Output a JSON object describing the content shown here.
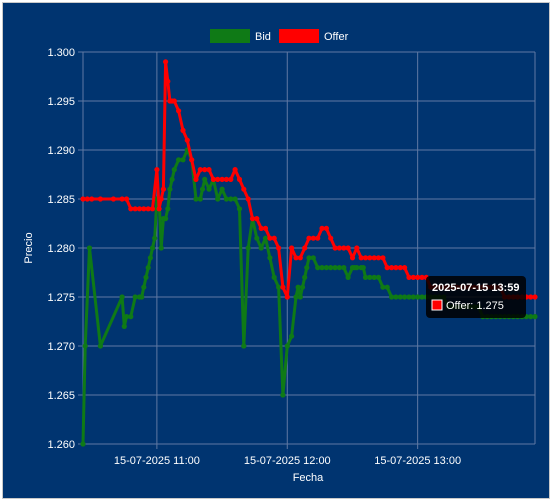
{
  "colors": {
    "background": "#003470",
    "grid": "#6079a3",
    "text": "#ffffff",
    "bid": "#0f7a16",
    "offer": "#ff0000",
    "tooltip_bg": "#000000"
  },
  "chart_data": {
    "type": "line",
    "title": "",
    "xlabel": "Fecha",
    "ylabel": "Precio",
    "ylim": [
      1.26,
      1.3
    ],
    "yticks": [
      "1.260",
      "1.265",
      "1.270",
      "1.275",
      "1.280",
      "1.285",
      "1.290",
      "1.295",
      "1.300"
    ],
    "xlim": [
      "2025-07-15 10:26",
      "2025-07-15 13:54"
    ],
    "xticks": [
      {
        "label": "15-07-2025 11:00",
        "time": "2025-07-15 11:00"
      },
      {
        "label": "15-07-2025 12:00",
        "time": "2025-07-15 12:00"
      },
      {
        "label": "15-07-2025 13:00",
        "time": "2025-07-15 13:00"
      }
    ],
    "grid": true,
    "legend": "top-center",
    "series": [
      {
        "name": "Bid",
        "x": [
          "10:26",
          "10:27",
          "10:29",
          "10:34",
          "10:44",
          "10:45",
          "10:46",
          "10:48",
          "10:50",
          "10:52",
          "10:53",
          "10:54",
          "10:55",
          "10:56",
          "10:57",
          "10:58",
          "10:59",
          "11:00",
          "11:01",
          "11:02",
          "11:03",
          "11:04",
          "11:05",
          "11:06",
          "11:07",
          "11:08",
          "11:10",
          "11:12",
          "11:14",
          "11:16",
          "11:18",
          "11:20",
          "11:21",
          "11:22",
          "11:24",
          "11:26",
          "11:28",
          "11:30",
          "11:32",
          "11:34",
          "11:36",
          "11:38",
          "11:40",
          "11:42",
          "11:44",
          "11:46",
          "11:48",
          "11:50",
          "11:52",
          "11:54",
          "11:56",
          "11:58",
          "12:00",
          "12:02",
          "12:04",
          "12:05",
          "12:06",
          "12:07",
          "12:08",
          "12:09",
          "12:10",
          "12:12",
          "12:14",
          "12:16",
          "12:18",
          "12:20",
          "12:22",
          "12:24",
          "12:26",
          "12:28",
          "12:30",
          "12:31",
          "12:32",
          "12:34",
          "12:35",
          "12:36",
          "12:38",
          "12:40",
          "12:42",
          "12:44",
          "12:46",
          "12:48",
          "12:50",
          "12:52",
          "12:54",
          "12:56",
          "12:58",
          "13:00",
          "13:02",
          "13:04",
          "13:06",
          "13:08",
          "13:10",
          "13:12",
          "13:14",
          "13:16",
          "13:18",
          "13:20",
          "13:22",
          "13:24",
          "13:26",
          "13:28",
          "13:30",
          "13:32",
          "13:34",
          "13:36",
          "13:38",
          "13:40",
          "13:42",
          "13:44",
          "13:46",
          "13:48",
          "13:50",
          "13:52",
          "13:54"
        ],
        "values": [
          1.26,
          1.27,
          1.28,
          1.27,
          1.275,
          1.272,
          1.273,
          1.273,
          1.275,
          1.275,
          1.275,
          1.276,
          1.277,
          1.278,
          1.279,
          1.28,
          1.281,
          1.285,
          1.285,
          1.28,
          1.283,
          1.283,
          1.284,
          1.286,
          1.287,
          1.288,
          1.289,
          1.289,
          1.29,
          1.289,
          1.285,
          1.285,
          1.286,
          1.287,
          1.286,
          1.287,
          1.285,
          1.286,
          1.285,
          1.285,
          1.285,
          1.284,
          1.27,
          1.28,
          1.283,
          1.281,
          1.28,
          1.281,
          1.279,
          1.277,
          1.276,
          1.265,
          1.27,
          1.271,
          1.275,
          1.276,
          1.275,
          1.276,
          1.277,
          1.278,
          1.279,
          1.279,
          1.278,
          1.278,
          1.278,
          1.278,
          1.278,
          1.278,
          1.278,
          1.277,
          1.278,
          1.278,
          1.278,
          1.278,
          1.278,
          1.277,
          1.277,
          1.277,
          1.277,
          1.276,
          1.276,
          1.275,
          1.275,
          1.275,
          1.275,
          1.275,
          1.275,
          1.275,
          1.275,
          1.275,
          1.275,
          1.275,
          1.275,
          1.275,
          1.274,
          1.274,
          1.274,
          1.274,
          1.274,
          1.274,
          1.274,
          1.274,
          1.273,
          1.273,
          1.273,
          1.273,
          1.273,
          1.273,
          1.273,
          1.273,
          1.273,
          1.273,
          1.273,
          1.273,
          1.273
        ]
      },
      {
        "name": "Offer",
        "x": [
          "10:26",
          "10:28",
          "10:30",
          "10:34",
          "10:40",
          "10:44",
          "10:46",
          "10:48",
          "10:50",
          "10:52",
          "10:54",
          "10:56",
          "10:58",
          "11:00",
          "11:01",
          "11:02",
          "11:03",
          "11:04",
          "11:05",
          "11:06",
          "11:07",
          "11:08",
          "11:10",
          "11:12",
          "11:14",
          "11:16",
          "11:18",
          "11:20",
          "11:22",
          "11:24",
          "11:26",
          "11:28",
          "11:30",
          "11:32",
          "11:34",
          "11:36",
          "11:38",
          "11:40",
          "11:42",
          "11:44",
          "11:46",
          "11:48",
          "11:50",
          "11:52",
          "11:54",
          "11:56",
          "11:58",
          "12:00",
          "12:02",
          "12:04",
          "12:06",
          "12:08",
          "12:10",
          "12:12",
          "12:14",
          "12:16",
          "12:18",
          "12:20",
          "12:22",
          "12:24",
          "12:26",
          "12:28",
          "12:30",
          "12:32",
          "12:34",
          "12:36",
          "12:38",
          "12:40",
          "12:42",
          "12:44",
          "12:46",
          "12:48",
          "12:50",
          "12:52",
          "12:54",
          "12:56",
          "12:58",
          "13:00",
          "13:02",
          "13:04",
          "13:06",
          "13:08",
          "13:10",
          "13:12",
          "13:14",
          "13:16",
          "13:18",
          "13:20",
          "13:22",
          "13:24",
          "13:26",
          "13:28",
          "13:30",
          "13:32",
          "13:34",
          "13:36",
          "13:38",
          "13:40",
          "13:42",
          "13:44",
          "13:46",
          "13:48",
          "13:50",
          "13:52",
          "13:54"
        ],
        "values": [
          1.285,
          1.285,
          1.285,
          1.285,
          1.285,
          1.285,
          1.285,
          1.284,
          1.284,
          1.284,
          1.284,
          1.284,
          1.284,
          1.288,
          1.284,
          1.285,
          1.286,
          1.299,
          1.297,
          1.295,
          1.295,
          1.295,
          1.294,
          1.292,
          1.291,
          1.289,
          1.287,
          1.288,
          1.288,
          1.288,
          1.287,
          1.287,
          1.287,
          1.287,
          1.287,
          1.288,
          1.287,
          1.286,
          1.285,
          1.283,
          1.283,
          1.282,
          1.282,
          1.281,
          1.281,
          1.28,
          1.276,
          1.275,
          1.28,
          1.279,
          1.279,
          1.28,
          1.281,
          1.281,
          1.281,
          1.282,
          1.282,
          1.281,
          1.28,
          1.28,
          1.28,
          1.28,
          1.279,
          1.28,
          1.279,
          1.279,
          1.279,
          1.279,
          1.279,
          1.279,
          1.278,
          1.278,
          1.278,
          1.278,
          1.278,
          1.277,
          1.277,
          1.277,
          1.277,
          1.277,
          1.276,
          1.276,
          1.276,
          1.276,
          1.276,
          1.276,
          1.276,
          1.276,
          1.276,
          1.276,
          1.276,
          1.276,
          1.276,
          1.276,
          1.276,
          1.276,
          1.276,
          1.275,
          1.275,
          1.275,
          1.275,
          1.275,
          1.275,
          1.275,
          1.275
        ]
      }
    ]
  },
  "tooltip": {
    "title": "2025-07-15 13:59",
    "label": "Offer: 1.275"
  }
}
